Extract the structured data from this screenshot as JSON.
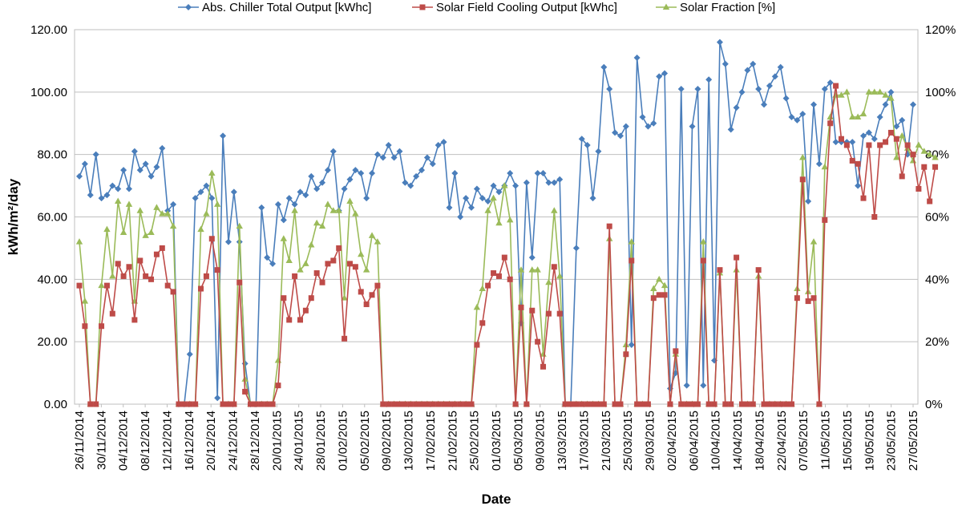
{
  "chart_data": {
    "type": "line",
    "title": "",
    "xlabel": "Date",
    "ylabel": "kWh/m²/day",
    "ylim": [
      0,
      120
    ],
    "y2lim": [
      0,
      120
    ],
    "grid": true,
    "legend_position": "top",
    "left_ticks": [
      "0.00",
      "20.00",
      "40.00",
      "60.00",
      "80.00",
      "100.00",
      "120.00"
    ],
    "right_ticks": [
      "0%",
      "20%",
      "40%",
      "60%",
      "80%",
      "100%",
      "120%"
    ],
    "x_tick_labels": [
      "26/11/2014",
      "30/11/2014",
      "04/12/2014",
      "08/12/2014",
      "12/12/2014",
      "16/12/2014",
      "20/12/2014",
      "24/12/2014",
      "28/12/2014",
      "20/01/2015",
      "24/01/2015",
      "28/01/2015",
      "01/02/2015",
      "05/02/2015",
      "09/02/2015",
      "13/02/2015",
      "17/02/2015",
      "21/02/2015",
      "25/02/2015",
      "01/03/2015",
      "05/03/2015",
      "09/03/2015",
      "13/03/2015",
      "17/03/2015",
      "21/03/2015",
      "25/03/2015",
      "29/03/2015",
      "02/04/2015",
      "06/04/2015",
      "10/04/2015",
      "14/04/2015",
      "18/04/2015",
      "22/04/2015",
      "07/05/2015",
      "11/05/2015",
      "15/05/2015",
      "19/05/2015",
      "23/05/2015",
      "27/05/2015"
    ],
    "series": [
      {
        "name": "Abs. Chiller Total Output [kWhc]",
        "color": "#4a7ebb",
        "marker": "diamond",
        "values": [
          73,
          77,
          67,
          80,
          66,
          67,
          70,
          69,
          75,
          69,
          81,
          75,
          77,
          73,
          76,
          82,
          62,
          64,
          0,
          0,
          16,
          66,
          68,
          70,
          66,
          2,
          86,
          52,
          68,
          52,
          13,
          0,
          0,
          63,
          47,
          45,
          64,
          59,
          66,
          64,
          68,
          67,
          73,
          69,
          71,
          75,
          81,
          62,
          69,
          72,
          75,
          74,
          66,
          74,
          80,
          79,
          83,
          79,
          81,
          71,
          70,
          73,
          75,
          79,
          77,
          83,
          84,
          63,
          74,
          60,
          66,
          63,
          69,
          66,
          65,
          70,
          68,
          70,
          74,
          70,
          26,
          71,
          47,
          74,
          74,
          71,
          71,
          72,
          0,
          0,
          50,
          85,
          83,
          66,
          81,
          108,
          101,
          87,
          86,
          89,
          19,
          111,
          92,
          89,
          90,
          105,
          106,
          5,
          10,
          101,
          6,
          89,
          101,
          6,
          104,
          14,
          116,
          109,
          88,
          95,
          100,
          107,
          109,
          101,
          96,
          102,
          105,
          108,
          98,
          92,
          91,
          93,
          65,
          96,
          77,
          101,
          103,
          84,
          84,
          84,
          84,
          70,
          86,
          87,
          85,
          92,
          96,
          100,
          89,
          91,
          80,
          96
        ]
      },
      {
        "name": "Solar Field Cooling Output [kWhc]",
        "color": "#be4b48",
        "marker": "square",
        "values": [
          38,
          25,
          0,
          0,
          25,
          38,
          29,
          45,
          41,
          44,
          27,
          46,
          41,
          40,
          48,
          50,
          38,
          36,
          0,
          0,
          0,
          0,
          37,
          41,
          53,
          43,
          0,
          0,
          0,
          39,
          4,
          0,
          0,
          0,
          0,
          0,
          6,
          34,
          27,
          41,
          27,
          30,
          34,
          42,
          39,
          45,
          46,
          50,
          21,
          45,
          44,
          36,
          32,
          35,
          38,
          0,
          0,
          0,
          0,
          0,
          0,
          0,
          0,
          0,
          0,
          0,
          0,
          0,
          0,
          0,
          0,
          0,
          19,
          26,
          38,
          42,
          41,
          47,
          40,
          0,
          31,
          0,
          30,
          20,
          12,
          29,
          44,
          29,
          0,
          0,
          0,
          0,
          0,
          0,
          0,
          0,
          57,
          0,
          0,
          16,
          46,
          0,
          0,
          0,
          34,
          35,
          35,
          0,
          17,
          0,
          0,
          0,
          0,
          46,
          0,
          0,
          43,
          0,
          0,
          47,
          0,
          0,
          0,
          43,
          0,
          0,
          0,
          0,
          0,
          0,
          34,
          72,
          33,
          34,
          0,
          59,
          90,
          102,
          85,
          83,
          78,
          77,
          66,
          83,
          60,
          83,
          84,
          87,
          85,
          73,
          83,
          80,
          69,
          76,
          65,
          76
        ]
      },
      {
        "name": "Solar Fraction [%]",
        "color": "#9bbb59",
        "marker": "triangle",
        "values": [
          52,
          33,
          0,
          0,
          38,
          56,
          41,
          65,
          55,
          64,
          33,
          62,
          54,
          55,
          63,
          61,
          61,
          57,
          0,
          0,
          0,
          0,
          56,
          61,
          74,
          64,
          0,
          0,
          0,
          57,
          8,
          0,
          0,
          0,
          0,
          0,
          14,
          53,
          46,
          62,
          43,
          45,
          51,
          58,
          57,
          64,
          62,
          62,
          34,
          65,
          61,
          48,
          43,
          54,
          52,
          0,
          0,
          0,
          0,
          0,
          0,
          0,
          0,
          0,
          0,
          0,
          0,
          0,
          0,
          0,
          0,
          0,
          31,
          37,
          62,
          66,
          58,
          70,
          59,
          0,
          43,
          0,
          43,
          43,
          16,
          39,
          62,
          41,
          0,
          0,
          0,
          0,
          0,
          0,
          0,
          0,
          53,
          0,
          0,
          19,
          52,
          0,
          0,
          0,
          37,
          40,
          38,
          0,
          16,
          0,
          0,
          0,
          0,
          52,
          0,
          0,
          42,
          0,
          0,
          43,
          0,
          0,
          0,
          41,
          0,
          0,
          0,
          0,
          0,
          0,
          37,
          79,
          36,
          52,
          0,
          76,
          92,
          99,
          99,
          100,
          92,
          92,
          93,
          100,
          100,
          100,
          99,
          98,
          79,
          86,
          82,
          78,
          83,
          81,
          80,
          79
        ]
      }
    ]
  }
}
